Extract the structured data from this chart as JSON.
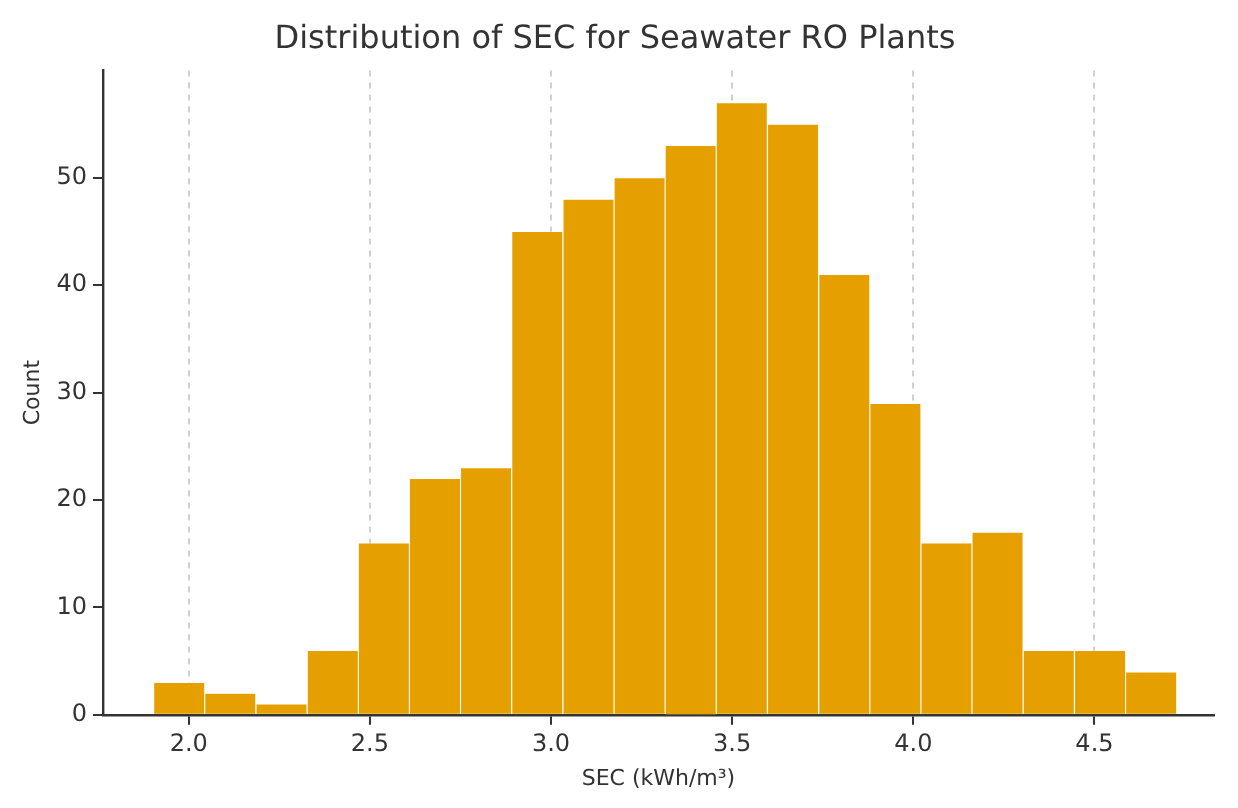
{
  "chart_data": {
    "type": "histogram",
    "title": "Distribution of SEC for Seawater RO Plants",
    "xlabel": "SEC (kWh/m³)",
    "ylabel": "Count",
    "bins": [
      1.903,
      2.044,
      2.185,
      2.327,
      2.468,
      2.609,
      2.75,
      2.891,
      3.033,
      3.174,
      3.315,
      3.456,
      3.597,
      3.739,
      3.88,
      4.021,
      4.162,
      4.303,
      4.445,
      4.586,
      4.727
    ],
    "values": [
      3,
      2,
      1,
      6,
      16,
      22,
      23,
      45,
      48,
      50,
      53,
      57,
      55,
      41,
      29,
      16,
      17,
      6,
      6,
      4
    ],
    "color": "#e5a000",
    "xlim": [
      1.763,
      4.83
    ],
    "xticks": [
      {
        "value": 2,
        "label": "2.0"
      },
      2.5,
      {
        "value": 3,
        "label": "3.0"
      },
      3.5,
      {
        "value": 4,
        "label": "4.0"
      },
      4.5
    ],
    "ylim": [
      0,
      60
    ],
    "yticks": [
      0,
      10,
      20,
      30,
      40,
      50
    ],
    "grid": "x",
    "legend": false
  }
}
